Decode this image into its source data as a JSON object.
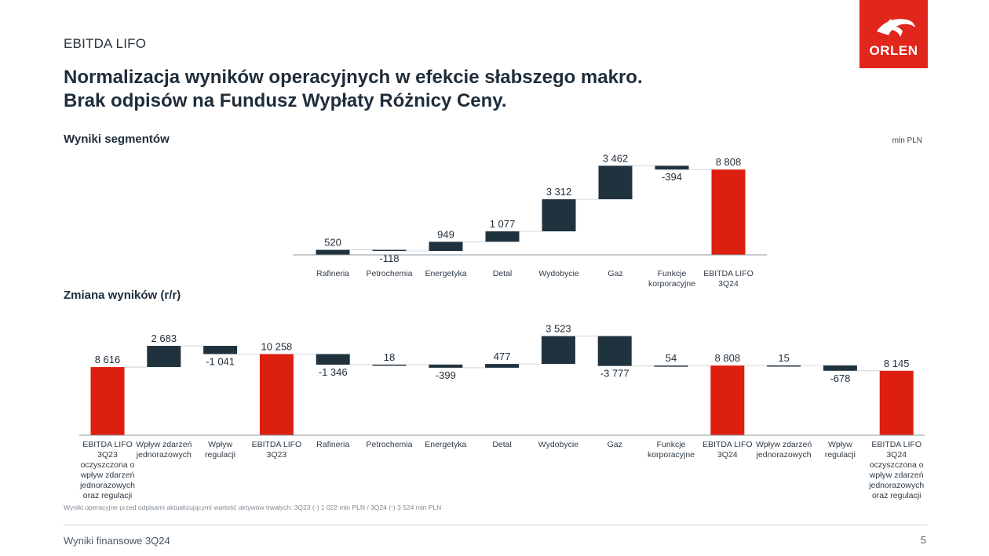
{
  "slide": {
    "section": "EBITDA LIFO",
    "headline": [
      "Normalizacja wyników operacyjnych w efekcie słabszego makro.",
      "Brak odpisów na Fundusz Wypłaty Różnicy Ceny."
    ],
    "logo_text": "ORLEN",
    "unit": "mln PLN",
    "footnote": "Wyniki operacyjne przed odpisami aktualizującymi wartość aktywów trwałych: 3Q23 (-) 1 022 mln PLN / 3Q24 (-) 3 524 mln PLN",
    "footer": "Wyniki finansowe 3Q24",
    "page_number": "5"
  },
  "colors": {
    "total": "#dc1f0f",
    "delta": "#21323f",
    "axis": "#8f979e",
    "connector": "#c5cacf",
    "brand": "#e1261c"
  },
  "chart_data": [
    {
      "type": "bar",
      "variant": "waterfall",
      "title": "Wyniki segmentów",
      "categories": [
        [
          "Rafineria"
        ],
        [
          "Petrochemia"
        ],
        [
          "Energetyka"
        ],
        [
          "Detal"
        ],
        [
          "Wydobycie"
        ],
        [
          "Gaz"
        ],
        [
          "Funkcje",
          "korporacyjne"
        ],
        [
          "EBITDA LIFO",
          "3Q24"
        ]
      ],
      "values": [
        520,
        -118,
        949,
        1077,
        3312,
        3462,
        -394,
        8808
      ],
      "labels": [
        "520",
        "-118",
        "949",
        "1 077",
        "3 312",
        "3 462",
        "-394",
        "8 808"
      ],
      "kinds": [
        "delta",
        "delta",
        "delta",
        "delta",
        "delta",
        "delta",
        "delta",
        "total"
      ]
    },
    {
      "type": "bar",
      "variant": "waterfall",
      "title": "Zmiana wyników (r/r)",
      "categories": [
        [
          "EBITDA LIFO",
          "3Q23",
          "oczyszczona o",
          "wpływ zdarzeń",
          "jednorazowych",
          "oraz regulacji"
        ],
        [
          "Wpływ zdarzeń",
          "jednorazowych"
        ],
        [
          "Wpływ",
          "regulacji"
        ],
        [
          "EBITDA LIFO",
          "3Q23"
        ],
        [
          "Rafineria"
        ],
        [
          "Petrochemia"
        ],
        [
          "Energetyka"
        ],
        [
          "Detal"
        ],
        [
          "Wydobycie"
        ],
        [
          "Gaz"
        ],
        [
          "Funkcje",
          "korporacyjne"
        ],
        [
          "EBITDA LIFO",
          "3Q24"
        ],
        [
          "Wpływ zdarzeń",
          "jednorazowych"
        ],
        [
          "Wpływ",
          "regulacji"
        ],
        [
          "EBITDA LIFO",
          "3Q24",
          "oczyszczona o",
          "wpływ zdarzeń",
          "jednorazowych",
          "oraz regulacji"
        ]
      ],
      "values": [
        8616,
        2683,
        -1041,
        10258,
        -1346,
        18,
        -399,
        477,
        3523,
        -3777,
        54,
        8808,
        15,
        -678,
        8145
      ],
      "labels": [
        "8 616",
        "2 683",
        "-1 041",
        "10 258",
        "-1 346",
        "18",
        "-399",
        "477",
        "3 523",
        "-3 777",
        "54",
        "8 808",
        "15",
        "-678",
        "8 145"
      ],
      "kinds": [
        "total",
        "delta",
        "delta",
        "total",
        "delta",
        "delta",
        "delta",
        "delta",
        "delta",
        "delta",
        "delta",
        "total",
        "delta",
        "delta",
        "total"
      ]
    }
  ]
}
